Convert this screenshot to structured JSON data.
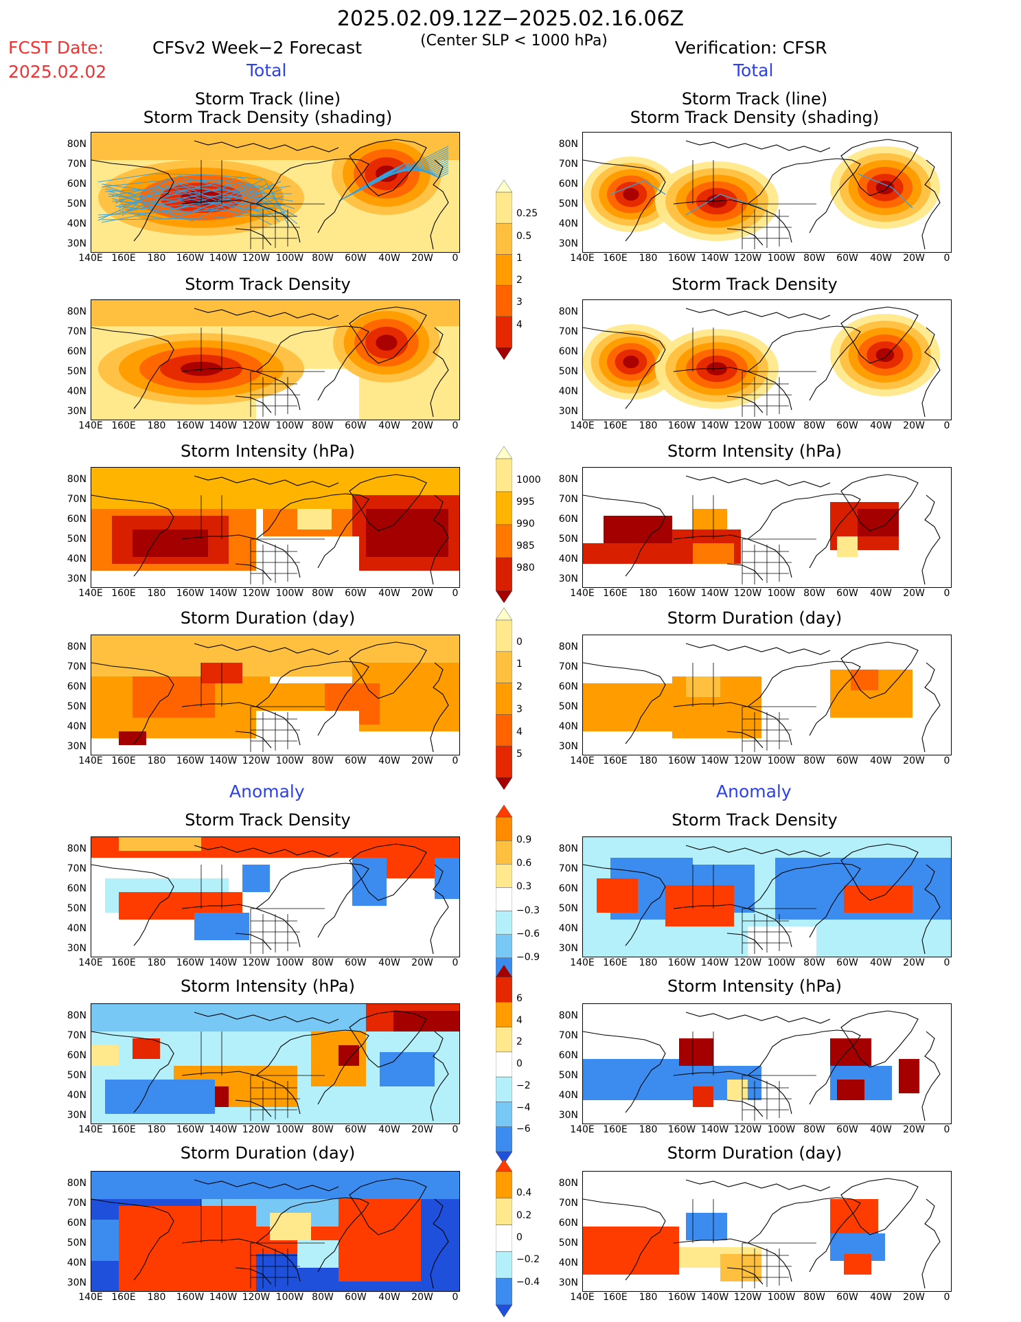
{
  "header": {
    "period": "2025.02.09.12Z−2025.02.16.06Z",
    "criterion": "(Center SLP < 1000 hPa)",
    "fcst_date_label": "FCST Date:",
    "fcst_date_value": "2025.02.02",
    "left_title": "CFSv2 Week−2 Forecast",
    "right_title": "Verification: CFSR",
    "total_label": "Total",
    "anomaly_label": "Anomaly"
  },
  "panel_titles": {
    "track_line": "Storm Track (line)",
    "track_density_shading": "Storm Track Density (shading)",
    "track_density": "Storm Track Density",
    "intensity": "Storm Intensity (hPa)",
    "duration": "Storm Duration (day)"
  },
  "axes": {
    "lat_ticks": [
      "80N",
      "70N",
      "60N",
      "50N",
      "40N",
      "30N"
    ],
    "lon_ticks": [
      "140E",
      "160E",
      "180",
      "160W",
      "140W",
      "120W",
      "100W",
      "80W",
      "60W",
      "40W",
      "20W",
      "0"
    ]
  },
  "colorbars": {
    "density_total": {
      "labels": [
        "0.25",
        "0.5",
        "1",
        "2",
        "3",
        "4"
      ],
      "colors": [
        "#ffffc8",
        "#ffe98c",
        "#ffc040",
        "#ff9c00",
        "#ff6400",
        "#e62800",
        "#a50000"
      ]
    },
    "intensity_total": {
      "labels": [
        "1000",
        "995",
        "990",
        "985",
        "980"
      ],
      "colors": [
        "#ffffc8",
        "#ffe98c",
        "#ffb400",
        "#ff7800",
        "#d82000",
        "#a50000"
      ]
    },
    "duration_total": {
      "labels": [
        "0",
        "1",
        "2",
        "3",
        "4",
        "5"
      ],
      "colors": [
        "#ffffc8",
        "#ffe98c",
        "#ffc040",
        "#ff9c00",
        "#ff6400",
        "#e62800",
        "#a50000"
      ]
    },
    "density_anom": {
      "labels": [
        "0.9",
        "0.6",
        "0.3",
        "−0.3",
        "−0.6",
        "−0.9"
      ],
      "colors": [
        "#ff3c00",
        "#ff8c00",
        "#ffc040",
        "#ffe98c",
        "#ffffff",
        "#b4f0fa",
        "#78c8f5",
        "#3c8cf0",
        "#1e50dc"
      ]
    },
    "intensity_anom": {
      "labels": [
        "6",
        "4",
        "2",
        "0",
        "−2",
        "−4",
        "−6"
      ],
      "colors": [
        "#a50000",
        "#e62800",
        "#ff9c00",
        "#ffe98c",
        "#ffffff",
        "#b4f0fa",
        "#78c8f5",
        "#3c8cf0",
        "#1e50dc"
      ]
    },
    "duration_anom": {
      "labels": [
        "0.4",
        "0.2",
        "0",
        "−0.2",
        "−0.4"
      ],
      "colors": [
        "#ff3c00",
        "#ff9c00",
        "#ffe98c",
        "#ffffff",
        "#b4f0fa",
        "#3c8cf0",
        "#1e50dc"
      ]
    }
  },
  "colors": {
    "red_text": "#f23131",
    "blue_text": "#2c41ee",
    "track_line": "#3aa0d8"
  }
}
